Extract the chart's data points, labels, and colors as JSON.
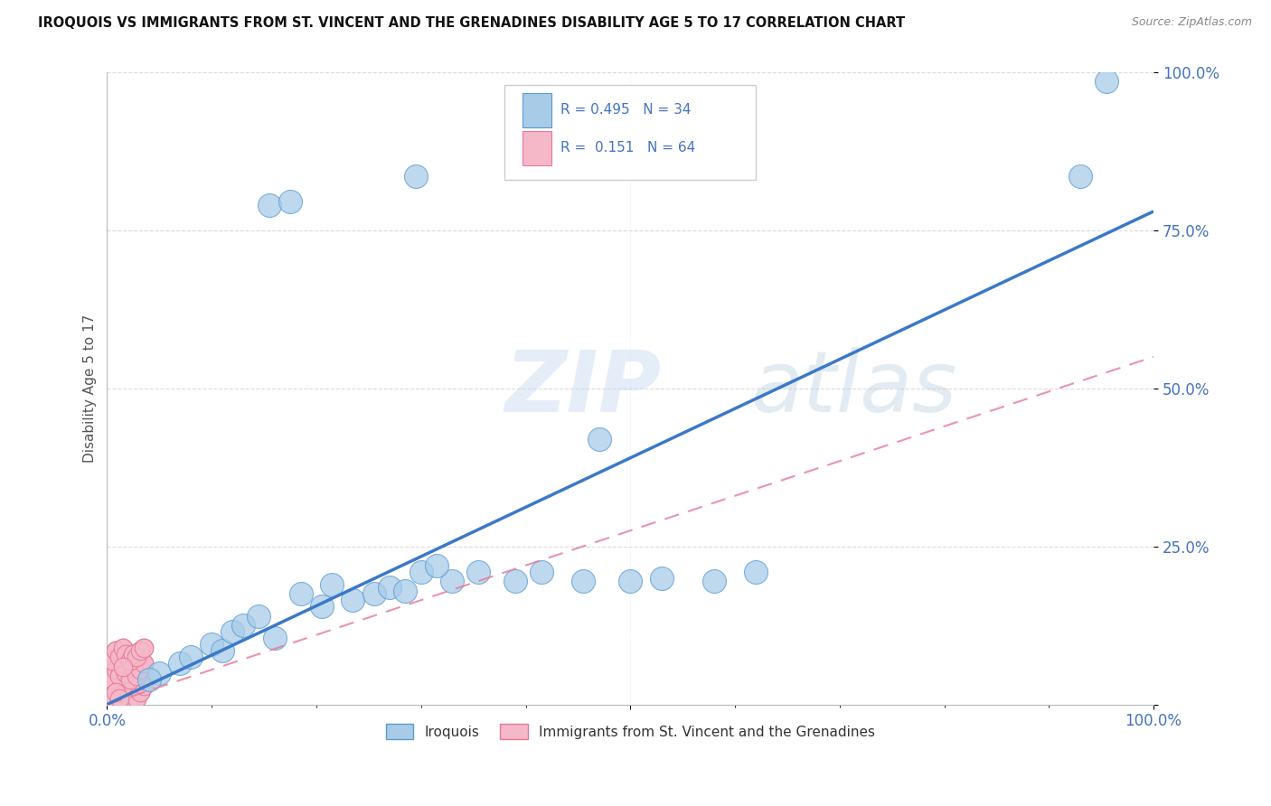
{
  "title": "IROQUOIS VS IMMIGRANTS FROM ST. VINCENT AND THE GRENADINES DISABILITY AGE 5 TO 17 CORRELATION CHART",
  "source": "Source: ZipAtlas.com",
  "ylabel": "Disability Age 5 to 17",
  "xlim": [
    0,
    1
  ],
  "ylim": [
    0,
    1
  ],
  "ytick_vals": [
    0.0,
    0.25,
    0.5,
    0.75,
    1.0
  ],
  "ytick_labels": [
    "",
    "25.0%",
    "50.0%",
    "75.0%",
    "100.0%"
  ],
  "watermark_zip": "ZIP",
  "watermark_atlas": "atlas",
  "legend_label1": "Iroquois",
  "legend_label2": "Immigrants from St. Vincent and the Grenadines",
  "R1": 0.495,
  "N1": 34,
  "R2": 0.151,
  "N2": 64,
  "color_blue_fill": "#A8CCE8",
  "color_blue_edge": "#5B9BD5",
  "color_blue_line": "#3C78C8",
  "color_pink_fill": "#F4B8C8",
  "color_pink_edge": "#E87898",
  "color_pink_line": "#E8A0B0",
  "color_text_blue": "#4472C4",
  "color_grid": "#CCCCCC",
  "blue_line_x0": 0.0,
  "blue_line_y0": 0.0,
  "blue_line_x1": 1.0,
  "blue_line_y1": 0.78,
  "pink_line_x0": 0.0,
  "pink_line_y0": 0.0,
  "pink_line_x1": 1.0,
  "pink_line_y1": 0.55,
  "iroquois_x": [
    0.295,
    0.155,
    0.175,
    0.33,
    0.455,
    0.53,
    0.62,
    0.955,
    0.93,
    0.05,
    0.07,
    0.08,
    0.1,
    0.11,
    0.12,
    0.13,
    0.145,
    0.16,
    0.185,
    0.205,
    0.215,
    0.235,
    0.255,
    0.27,
    0.285,
    0.3,
    0.315,
    0.355,
    0.39,
    0.415,
    0.47,
    0.5,
    0.58,
    0.04
  ],
  "iroquois_y": [
    0.835,
    0.79,
    0.795,
    0.195,
    0.195,
    0.2,
    0.21,
    0.985,
    0.835,
    0.05,
    0.065,
    0.075,
    0.095,
    0.085,
    0.115,
    0.125,
    0.14,
    0.105,
    0.175,
    0.155,
    0.19,
    0.165,
    0.175,
    0.185,
    0.18,
    0.21,
    0.22,
    0.21,
    0.195,
    0.21,
    0.42,
    0.195,
    0.195,
    0.04
  ],
  "svg_x_base": [
    0.005,
    0.008,
    0.012,
    0.015,
    0.018,
    0.022,
    0.025,
    0.028,
    0.032,
    0.035,
    0.005,
    0.008,
    0.012,
    0.015,
    0.018,
    0.022,
    0.025,
    0.028,
    0.032,
    0.035,
    0.005,
    0.008,
    0.012,
    0.015,
    0.018,
    0.022,
    0.025,
    0.028,
    0.032,
    0.035,
    0.005,
    0.008,
    0.012,
    0.015,
    0.018,
    0.022,
    0.025,
    0.028,
    0.032,
    0.035,
    0.005,
    0.008,
    0.012,
    0.015,
    0.018,
    0.022,
    0.025,
    0.028,
    0.032,
    0.035,
    0.005,
    0.008,
    0.012,
    0.015,
    0.018,
    0.022,
    0.025,
    0.028,
    0.032,
    0.035,
    0.005,
    0.008,
    0.012,
    0.015
  ],
  "svg_y_base": [
    0.005,
    0.02,
    0.01,
    0.03,
    0.015,
    0.005,
    0.025,
    0.01,
    0.02,
    0.03,
    0.04,
    0.055,
    0.045,
    0.065,
    0.05,
    0.04,
    0.06,
    0.045,
    0.055,
    0.065,
    0.07,
    0.085,
    0.075,
    0.09,
    0.08,
    0.07,
    0.08,
    0.075,
    0.085,
    0.09,
    0.005,
    0.02,
    0.01,
    0.03,
    0.015,
    0.005,
    0.025,
    0.01,
    0.02,
    0.03,
    0.04,
    0.055,
    0.045,
    0.065,
    0.05,
    0.04,
    0.06,
    0.045,
    0.055,
    0.065,
    0.07,
    0.085,
    0.075,
    0.09,
    0.08,
    0.07,
    0.08,
    0.075,
    0.085,
    0.09,
    0.005,
    0.02,
    0.01,
    0.06
  ]
}
